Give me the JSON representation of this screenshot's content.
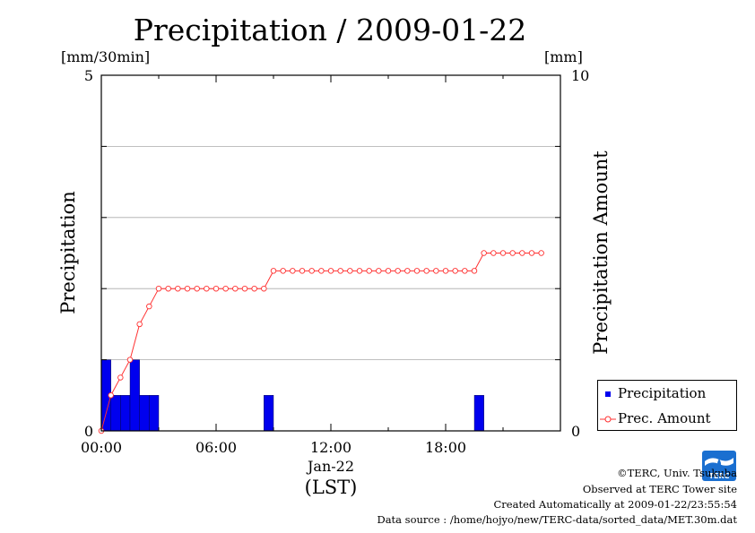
{
  "chart_data": {
    "type": "bar+line",
    "title": "Precipitation / 2009-01-22",
    "left_axis": {
      "label": "Precipitation",
      "unit": "[mm/30min]",
      "ylim": [
        0,
        5
      ],
      "tick_labels": [
        "0",
        "5"
      ]
    },
    "right_axis": {
      "label": "Precipitation Amount",
      "unit": "[mm]",
      "ylim": [
        0,
        10
      ],
      "tick_labels": [
        "0",
        "10"
      ]
    },
    "x_axis": {
      "xlim_hours": [
        0,
        24
      ],
      "tick_labels": [
        "00:00",
        "06:00",
        "12:00",
        "18:00"
      ],
      "tick_hours": [
        0,
        6,
        12,
        18
      ],
      "date_label": "Jan-22",
      "unit_label": "(LST)"
    },
    "grid": true,
    "legend_placement": "bottom-right outside",
    "series": [
      {
        "name": "Precipitation",
        "type": "bar",
        "axis": "left",
        "color": "#0000ee",
        "x_hours": [
          0.0,
          0.5,
          1.0,
          1.5,
          2.0,
          2.5,
          8.5,
          19.5
        ],
        "values": [
          1.0,
          0.5,
          0.5,
          1.0,
          0.5,
          0.5,
          0.5,
          0.5
        ]
      },
      {
        "name": "Prec. Amount",
        "type": "line",
        "axis": "right",
        "color": "#ff3030",
        "x_hours": [
          0.0,
          0.5,
          1.0,
          1.5,
          2.0,
          2.5,
          3.0,
          3.5,
          4.0,
          4.5,
          5.0,
          5.5,
          6.0,
          6.5,
          7.0,
          7.5,
          8.0,
          8.5,
          9.0,
          9.5,
          10.0,
          10.5,
          11.0,
          11.5,
          12.0,
          12.5,
          13.0,
          13.5,
          14.0,
          14.5,
          15.0,
          15.5,
          16.0,
          16.5,
          17.0,
          17.5,
          18.0,
          18.5,
          19.0,
          19.5,
          20.0,
          20.5,
          21.0,
          21.5,
          22.0,
          22.5,
          23.0
        ],
        "values": [
          0.0,
          1.0,
          1.5,
          2.0,
          3.0,
          3.5,
          4.0,
          4.0,
          4.0,
          4.0,
          4.0,
          4.0,
          4.0,
          4.0,
          4.0,
          4.0,
          4.0,
          4.0,
          4.5,
          4.5,
          4.5,
          4.5,
          4.5,
          4.5,
          4.5,
          4.5,
          4.5,
          4.5,
          4.5,
          4.5,
          4.5,
          4.5,
          4.5,
          4.5,
          4.5,
          4.5,
          4.5,
          4.5,
          4.5,
          4.5,
          5.0,
          5.0,
          5.0,
          5.0,
          5.0,
          5.0,
          5.0
        ]
      }
    ]
  },
  "legend": {
    "items": [
      "Precipitation",
      "Prec. Amount"
    ]
  },
  "credits": {
    "line1": "©TERC, Univ. Tsukuba",
    "line2": "Observed at TERC Tower site",
    "line3": "Created Automatically at 2009-01-22/23:55:54",
    "line4": "Data source : /home/hojyo/new/TERC-data/sorted_data/MET.30m.dat"
  },
  "logo": {
    "icon": "terc-logo-icon",
    "text": "TERC",
    "color": "#1a6fd0"
  }
}
